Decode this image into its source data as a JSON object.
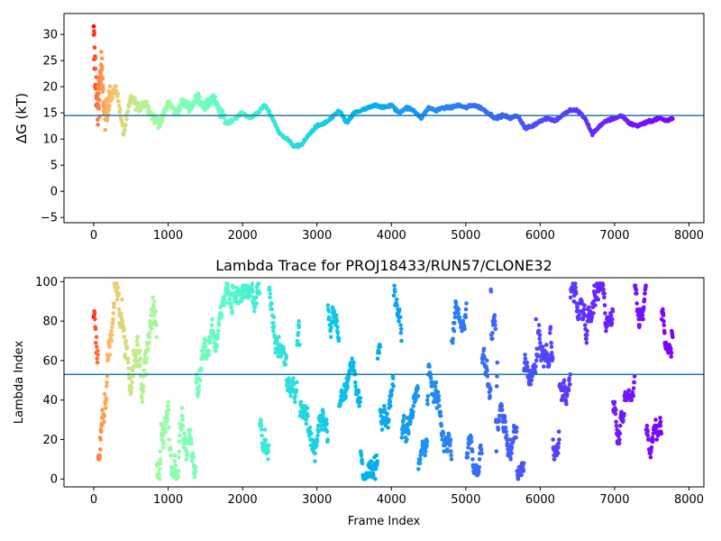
{
  "chart_data": [
    {
      "type": "scatter",
      "title": "",
      "xlabel": "",
      "ylabel": "ΔG (kT)",
      "xlim": [
        -400,
        8200
      ],
      "ylim": [
        -6,
        34
      ],
      "xticks": [
        0,
        1000,
        2000,
        3000,
        4000,
        5000,
        6000,
        7000,
        8000
      ],
      "yticks": [
        -5,
        0,
        5,
        10,
        15,
        20,
        25,
        30
      ],
      "hline": 14.5,
      "hline_color": "#1f77b4",
      "colormap": "rainbow (color by frame index: red at start, violet at end)",
      "frames": 7780,
      "grid": false,
      "trend": [
        [
          0,
          28
        ],
        [
          50,
          15
        ],
        [
          100,
          24
        ],
        [
          150,
          14
        ],
        [
          200,
          17
        ],
        [
          300,
          20
        ],
        [
          400,
          11
        ],
        [
          500,
          18
        ],
        [
          600,
          16
        ],
        [
          700,
          17
        ],
        [
          800,
          14
        ],
        [
          900,
          13
        ],
        [
          1000,
          17
        ],
        [
          1100,
          15
        ],
        [
          1200,
          17
        ],
        [
          1300,
          16
        ],
        [
          1400,
          18
        ],
        [
          1500,
          16
        ],
        [
          1600,
          18
        ],
        [
          1700,
          15
        ],
        [
          1800,
          13
        ],
        [
          1900,
          14
        ],
        [
          2000,
          15
        ],
        [
          2100,
          14
        ],
        [
          2200,
          15
        ],
        [
          2300,
          16.5
        ],
        [
          2400,
          14
        ],
        [
          2500,
          11
        ],
        [
          2600,
          10
        ],
        [
          2700,
          8.5
        ],
        [
          2800,
          9
        ],
        [
          2900,
          11
        ],
        [
          3000,
          12.5
        ],
        [
          3100,
          13
        ],
        [
          3200,
          14
        ],
        [
          3300,
          15.5
        ],
        [
          3400,
          13
        ],
        [
          3500,
          15
        ],
        [
          3600,
          15.5
        ],
        [
          3700,
          16
        ],
        [
          3800,
          16.5
        ],
        [
          3900,
          16
        ],
        [
          4000,
          16.5
        ],
        [
          4100,
          15
        ],
        [
          4200,
          16
        ],
        [
          4300,
          15.5
        ],
        [
          4400,
          14
        ],
        [
          4500,
          16
        ],
        [
          4600,
          15.5
        ],
        [
          4700,
          16
        ],
        [
          4800,
          16
        ],
        [
          4900,
          16.5
        ],
        [
          5000,
          16
        ],
        [
          5100,
          16.5
        ],
        [
          5200,
          16
        ],
        [
          5300,
          15
        ],
        [
          5400,
          14
        ],
        [
          5500,
          14.5
        ],
        [
          5600,
          14
        ],
        [
          5700,
          14.5
        ],
        [
          5800,
          12
        ],
        [
          5900,
          12.5
        ],
        [
          6000,
          13.5
        ],
        [
          6100,
          14
        ],
        [
          6200,
          13.5
        ],
        [
          6300,
          14.5
        ],
        [
          6400,
          15.5
        ],
        [
          6500,
          15.5
        ],
        [
          6600,
          14
        ],
        [
          6700,
          11
        ],
        [
          6800,
          12.5
        ],
        [
          6900,
          13.5
        ],
        [
          7000,
          14
        ],
        [
          7100,
          14.5
        ],
        [
          7200,
          13
        ],
        [
          7300,
          12.5
        ],
        [
          7400,
          13
        ],
        [
          7500,
          13.5
        ],
        [
          7600,
          14
        ],
        [
          7700,
          13.5
        ],
        [
          7780,
          14
        ]
      ]
    },
    {
      "type": "scatter",
      "title": "Lambda Trace for PROJ18433/RUN57/CLONE32",
      "xlabel": "Frame Index",
      "ylabel": "Lambda Index",
      "xlim": [
        -400,
        8200
      ],
      "ylim": [
        -4,
        102
      ],
      "xticks": [
        0,
        1000,
        2000,
        3000,
        4000,
        5000,
        6000,
        7000,
        8000
      ],
      "yticks": [
        0,
        20,
        40,
        60,
        80,
        100
      ],
      "hline": 53,
      "hline_color": "#1f77b4",
      "colormap": "rainbow (color by frame index: red at start, violet at end)",
      "frames": 7780,
      "lambda_range": [
        0,
        99
      ],
      "grid": false
    }
  ]
}
